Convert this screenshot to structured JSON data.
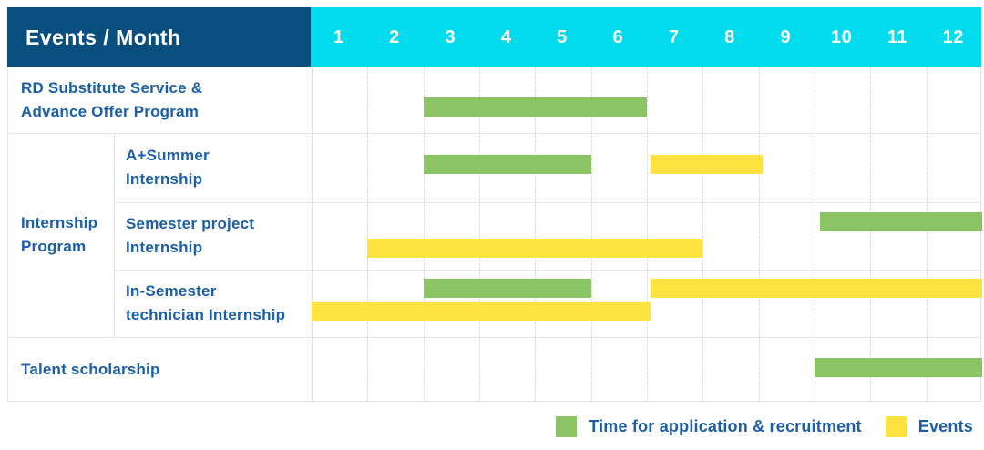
{
  "table": {
    "corner_label": "Events / Month",
    "months": [
      "1",
      "2",
      "3",
      "4",
      "5",
      "6",
      "7",
      "8",
      "9",
      "10",
      "11",
      "12"
    ]
  },
  "colors": {
    "navy_header": "#084f80",
    "cyan_header": "#00dbed",
    "label_blue": "#1a5fa8",
    "application_green": "#8bc464",
    "event_yellow": "#ffe340"
  },
  "legend": {
    "items": [
      {
        "id": "application",
        "label": "Time for application & recruitment",
        "color": "#8bc464"
      },
      {
        "id": "event",
        "label": "Events",
        "color": "#ffe340"
      }
    ]
  },
  "chart_data": {
    "type": "gantt",
    "unit": "month",
    "axis_months": [
      1,
      2,
      3,
      4,
      5,
      6,
      7,
      8,
      9,
      10,
      11,
      12
    ],
    "coord_note": "bar from/to are month-axis boundaries: n = start of month n, 13 = end of month 12",
    "group": {
      "id": "internship-program",
      "label": "Internship Program",
      "label_lines": [
        "Internship",
        "Program"
      ]
    },
    "rows": [
      {
        "id": "rd-substitute",
        "label": "RD Substitute Service & Advance Offer Program",
        "label_lines": [
          "RD Substitute Service &",
          "Advance Offer Program"
        ],
        "in_group": false,
        "bars": [
          {
            "kind": "application",
            "from": 3,
            "to": 7,
            "line": 0
          }
        ]
      },
      {
        "id": "a-summer-internship",
        "label": "A+Summer Internship",
        "label_lines": [
          "A+Summer",
          "Internship"
        ],
        "in_group": true,
        "bars": [
          {
            "kind": "application",
            "from": 3,
            "to": 6,
            "line": 0
          },
          {
            "kind": "event",
            "from": 7.07,
            "to": 9.07,
            "line": 0
          }
        ]
      },
      {
        "id": "semester-project-internship",
        "label": "Semester project Internship",
        "label_lines": [
          "Semester project",
          "Internship"
        ],
        "in_group": true,
        "bars": [
          {
            "kind": "application",
            "from": 10.1,
            "to": 13,
            "line": 0
          },
          {
            "kind": "event",
            "from": 2,
            "to": 8,
            "line": 1
          }
        ]
      },
      {
        "id": "in-semester-technician-internship",
        "label": "In-Semester technician Internship",
        "label_lines": [
          "In-Semester",
          "technician Internship"
        ],
        "in_group": true,
        "bars": [
          {
            "kind": "application",
            "from": 3,
            "to": 6,
            "line": 0
          },
          {
            "kind": "event",
            "from": 7.07,
            "to": 13,
            "line": 0
          },
          {
            "kind": "event",
            "from": 1,
            "to": 7.07,
            "line": 1
          }
        ]
      },
      {
        "id": "talent-scholarship",
        "label": "Talent scholarship",
        "label_lines": [
          "Talent scholarship"
        ],
        "in_group": false,
        "bars": [
          {
            "kind": "application",
            "from": 10,
            "to": 13,
            "line": 0
          }
        ]
      }
    ]
  }
}
